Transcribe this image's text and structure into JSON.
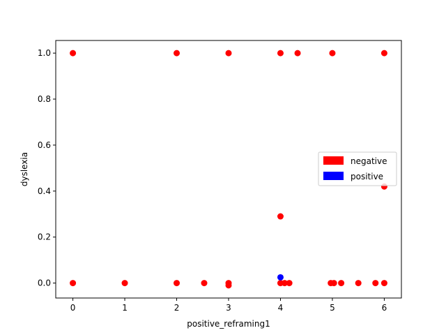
{
  "chart_data": {
    "type": "scatter",
    "title": "",
    "xlabel": "positive_reframing1",
    "ylabel": "dyslexia",
    "xlim": [
      -0.33,
      6.33
    ],
    "ylim": [
      -0.065,
      1.055
    ],
    "xticks": [
      0,
      1,
      2,
      3,
      4,
      5,
      6
    ],
    "yticks": [
      0.0,
      0.2,
      0.4,
      0.6,
      0.8,
      1.0
    ],
    "xtick_labels": [
      "0",
      "1",
      "2",
      "3",
      "4",
      "5",
      "6"
    ],
    "ytick_labels": [
      "0.0",
      "0.2",
      "0.4",
      "0.6",
      "0.8",
      "1.0"
    ],
    "grid": false,
    "legend_position": "center-right",
    "series": [
      {
        "name": "negative",
        "color": "#ff0000",
        "points": [
          [
            0,
            1.0
          ],
          [
            2,
            1.0
          ],
          [
            3,
            1.0
          ],
          [
            4,
            1.0
          ],
          [
            4.33,
            1.0
          ],
          [
            5,
            1.0
          ],
          [
            6,
            1.0
          ],
          [
            0,
            0.0
          ],
          [
            1,
            0.0
          ],
          [
            2,
            0.0
          ],
          [
            2.53,
            0.0
          ],
          [
            3,
            0.0
          ],
          [
            3,
            -0.01
          ],
          [
            4,
            0.0
          ],
          [
            4.08,
            0.0
          ],
          [
            4.17,
            0.0
          ],
          [
            4.97,
            0.0
          ],
          [
            5.03,
            0.0
          ],
          [
            5.17,
            0.0
          ],
          [
            5.5,
            0.0
          ],
          [
            5.83,
            0.0
          ],
          [
            6,
            0.0
          ],
          [
            4,
            0.29
          ],
          [
            6,
            0.42
          ]
        ]
      },
      {
        "name": "positive",
        "color": "#0000ff",
        "points": [
          [
            4,
            0.025
          ]
        ]
      }
    ]
  }
}
